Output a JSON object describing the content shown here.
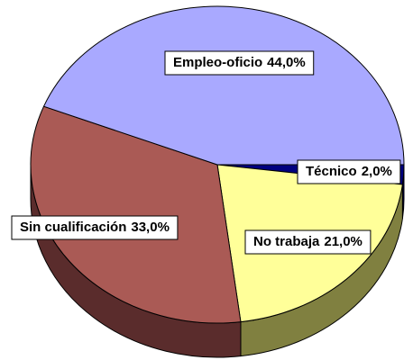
{
  "chart_data": {
    "type": "pie",
    "categories": [
      "Técnico",
      "No trabaja",
      "Sin cualificación",
      "Empleo-oficio"
    ],
    "values": [
      2.0,
      21.0,
      33.0,
      44.0
    ],
    "value_labels": [
      "2,0%",
      "21,0%",
      "33,0%",
      "44,0%"
    ],
    "colors": [
      "#000080",
      "#ffff99",
      "#aa5a55",
      "#a9a9ff"
    ],
    "side_colors": [
      "#000050",
      "#808040",
      "#5a2c2c",
      "#6a6aa8"
    ],
    "start_angle": 0,
    "direction": "clockwise",
    "three_d": true
  }
}
